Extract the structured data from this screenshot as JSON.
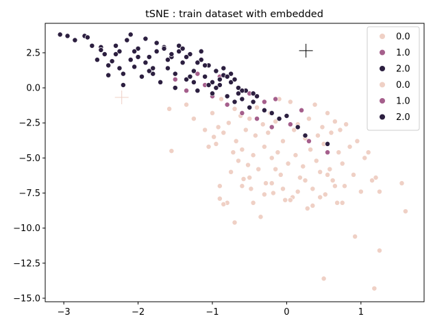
{
  "chart_data": {
    "type": "scatter",
    "title": "tSNE : train dataset with embedded",
    "xlabel": "",
    "ylabel": "",
    "xlim": [
      -3.25,
      1.85
    ],
    "ylim": [
      -15.25,
      4.6
    ],
    "xticks": [
      -3,
      -2,
      -1,
      0,
      1
    ],
    "xtick_labels": [
      "−3",
      "−2",
      "−1",
      "0",
      "1"
    ],
    "yticks": [
      2.5,
      0.0,
      -2.5,
      -5.0,
      -7.5,
      -10.0,
      -12.5,
      -15.0
    ],
    "ytick_labels": [
      "2.5",
      "0.0",
      "−2.5",
      "−5.0",
      "−7.5",
      "−10.0",
      "−12.5",
      "−15.0"
    ],
    "grid": false,
    "legend_position": "top-right",
    "colors": {
      "0.0": "#efd0c5",
      "1.0": "#a55f8c",
      "2.0": "#2c1f40"
    },
    "legend": [
      {
        "label": "0.0",
        "class": "0.0"
      },
      {
        "label": "1.0",
        "class": "1.0"
      },
      {
        "label": "2.0",
        "class": "2.0"
      },
      {
        "label": "0.0",
        "class": "0.0"
      },
      {
        "label": "1.0",
        "class": "1.0"
      },
      {
        "label": "2.0",
        "class": "2.0"
      }
    ],
    "series": [
      {
        "class": "0.0",
        "x": [
          -1.58,
          -1.55,
          -1.35,
          -1.25,
          -1.1,
          -1.05,
          -1.0,
          -0.98,
          -0.95,
          -0.92,
          -0.9,
          -0.88,
          -0.85,
          -0.8,
          -0.78,
          -0.75,
          -0.72,
          -0.7,
          -0.68,
          -0.65,
          -0.62,
          -0.6,
          -0.58,
          -0.55,
          -0.52,
          -0.5,
          -0.48,
          -0.45,
          -0.42,
          -0.4,
          -0.38,
          -0.35,
          -0.32,
          -0.3,
          -0.28,
          -0.25,
          -0.22,
          -0.2,
          -0.18,
          -0.15,
          -0.12,
          -0.1,
          -0.08,
          -0.05,
          -0.02,
          0.0,
          0.02,
          0.05,
          0.08,
          0.1,
          0.12,
          0.15,
          0.18,
          0.2,
          0.22,
          0.25,
          0.28,
          0.3,
          0.32,
          0.35,
          0.38,
          0.4,
          0.42,
          0.45,
          0.48,
          0.5,
          0.52,
          0.55,
          0.58,
          0.6,
          0.62,
          0.65,
          0.68,
          0.7,
          0.72,
          0.75,
          0.78,
          0.8,
          0.85,
          0.9,
          0.95,
          1.0,
          1.05,
          1.1,
          1.15,
          1.2,
          1.25,
          1.55,
          1.6,
          -0.9,
          -0.85,
          -0.7,
          -0.6,
          -0.5,
          -0.45,
          -0.3,
          -0.2,
          -0.15,
          -0.05,
          0.05,
          0.15,
          0.25,
          0.35,
          0.45,
          0.55,
          0.65,
          0.75,
          0.92,
          0.5,
          1.18,
          1.25
        ],
        "y": [
          -1.5,
          -4.5,
          -1.2,
          -2.2,
          -3.0,
          -4.2,
          -1.8,
          -3.5,
          -4.0,
          -2.8,
          -7.0,
          -0.8,
          -3.2,
          -8.2,
          -2.5,
          -6.0,
          -4.6,
          -1.5,
          -3.8,
          -5.2,
          -2.0,
          -4.4,
          -6.5,
          -3.0,
          -5.5,
          -2.2,
          -7.2,
          -4.8,
          -3.4,
          -1.4,
          -5.8,
          -9.2,
          -2.6,
          -4.2,
          -6.8,
          -3.2,
          -1.8,
          -5.0,
          -7.5,
          -2.4,
          -4.6,
          -0.8,
          -6.2,
          -3.8,
          -8.0,
          -2.0,
          -5.4,
          -1.0,
          -7.8,
          -3.0,
          -4.8,
          -2.6,
          -6.4,
          -1.6,
          -5.6,
          -3.6,
          -8.6,
          -2.2,
          -4.4,
          -7.2,
          -1.2,
          -5.2,
          -3.4,
          -6.0,
          -2.8,
          -4.0,
          -7.6,
          -1.8,
          -5.8,
          -3.2,
          -6.6,
          -2.4,
          -8.2,
          -4.6,
          -3.0,
          -5.4,
          -7.0,
          -2.6,
          -4.2,
          -6.2,
          -3.8,
          -7.4,
          -5.0,
          -4.6,
          -6.6,
          -6.4,
          -7.4,
          -6.8,
          -8.8,
          -7.9,
          -8.3,
          -9.6,
          -7.0,
          -6.4,
          -8.2,
          -7.6,
          -6.8,
          -5.8,
          -7.2,
          -8.0,
          -7.4,
          -6.6,
          -8.4,
          -7.8,
          -6.2,
          -7.0,
          -8.2,
          -10.6,
          -13.6,
          -14.3,
          -11.6
        ]
      },
      {
        "class": "1.0",
        "x": [
          -1.5,
          -1.35,
          -1.2,
          -1.1,
          -1.0,
          -0.9,
          -0.8,
          -0.75,
          -0.6,
          -0.5,
          -0.4,
          -0.3,
          -0.15,
          0.05,
          0.3,
          0.55,
          0.2,
          -0.2
        ],
        "y": [
          0.6,
          -0.2,
          1.0,
          0.2,
          -0.6,
          0.8,
          -1.2,
          0.4,
          -1.8,
          -0.4,
          -2.2,
          -1.0,
          -0.8,
          -2.6,
          -3.8,
          -4.6,
          -1.6,
          -2.8
        ]
      },
      {
        "class": "2.0",
        "x": [
          -3.05,
          -2.95,
          -2.85,
          -2.72,
          -2.68,
          -2.62,
          -2.55,
          -2.5,
          -2.45,
          -2.4,
          -2.35,
          -2.3,
          -2.25,
          -2.2,
          -2.15,
          -2.1,
          -2.05,
          -2.0,
          -1.95,
          -1.9,
          -1.85,
          -1.8,
          -1.75,
          -1.7,
          -1.65,
          -1.6,
          -1.55,
          -1.5,
          -1.45,
          -1.4,
          -1.35,
          -1.3,
          -1.25,
          -1.2,
          -1.15,
          -1.1,
          -1.05,
          -1.0,
          -0.95,
          -0.9,
          -0.85,
          -0.8,
          -0.75,
          -0.7,
          -0.65,
          -0.6,
          -0.55,
          -0.5,
          -0.45,
          -0.4,
          -0.3,
          -0.2,
          -0.1,
          0.0,
          0.15,
          0.25,
          0.55,
          -2.4,
          -2.2,
          -2.0,
          -1.9,
          -1.75,
          -1.6,
          -1.45,
          -1.3,
          -1.15,
          -1.0,
          -0.85,
          -0.7,
          -2.3,
          -2.1,
          -1.85,
          -1.65,
          -1.5,
          -1.35,
          -1.2,
          -1.05,
          -0.9,
          -0.75,
          -0.6,
          -0.45,
          -2.5,
          -2.25,
          -2.05,
          -1.8,
          -1.55,
          -1.4,
          -1.25,
          -1.1,
          -0.95,
          -0.8,
          -0.65
        ],
        "y": [
          3.8,
          3.7,
          3.4,
          3.7,
          3.6,
          3.0,
          2.0,
          2.9,
          2.4,
          0.9,
          1.9,
          3.0,
          2.6,
          0.2,
          3.4,
          3.8,
          1.5,
          2.8,
          0.8,
          3.5,
          2.2,
          1.0,
          2.6,
          0.4,
          2.9,
          1.4,
          2.2,
          0.0,
          2.6,
          1.8,
          0.6,
          2.4,
          1.2,
          -0.2,
          2.0,
          0.8,
          1.6,
          -0.4,
          1.2,
          0.2,
          0.9,
          -0.6,
          0.4,
          -1.0,
          0.0,
          -0.8,
          -0.2,
          -1.4,
          -1.0,
          -0.6,
          -1.6,
          -1.8,
          -2.2,
          -2.0,
          -2.8,
          -3.4,
          -4.0,
          1.6,
          1.0,
          2.2,
          1.8,
          3.2,
          2.0,
          3.0,
          0.8,
          2.6,
          0.4,
          1.4,
          0.6,
          2.4,
          2.0,
          1.2,
          2.8,
          1.0,
          2.2,
          1.8,
          0.2,
          0.6,
          1.0,
          -0.2,
          -0.4,
          2.7,
          1.4,
          2.6,
          1.4,
          2.4,
          2.8,
          0.4,
          1.6,
          0.0,
          0.8,
          -0.4
        ]
      }
    ],
    "markers": [
      {
        "type": "plus",
        "x": 0.26,
        "y": 2.65,
        "color": "#000000"
      },
      {
        "type": "plus",
        "x": -2.22,
        "y": -0.68,
        "color": "#efd0c5"
      }
    ]
  }
}
